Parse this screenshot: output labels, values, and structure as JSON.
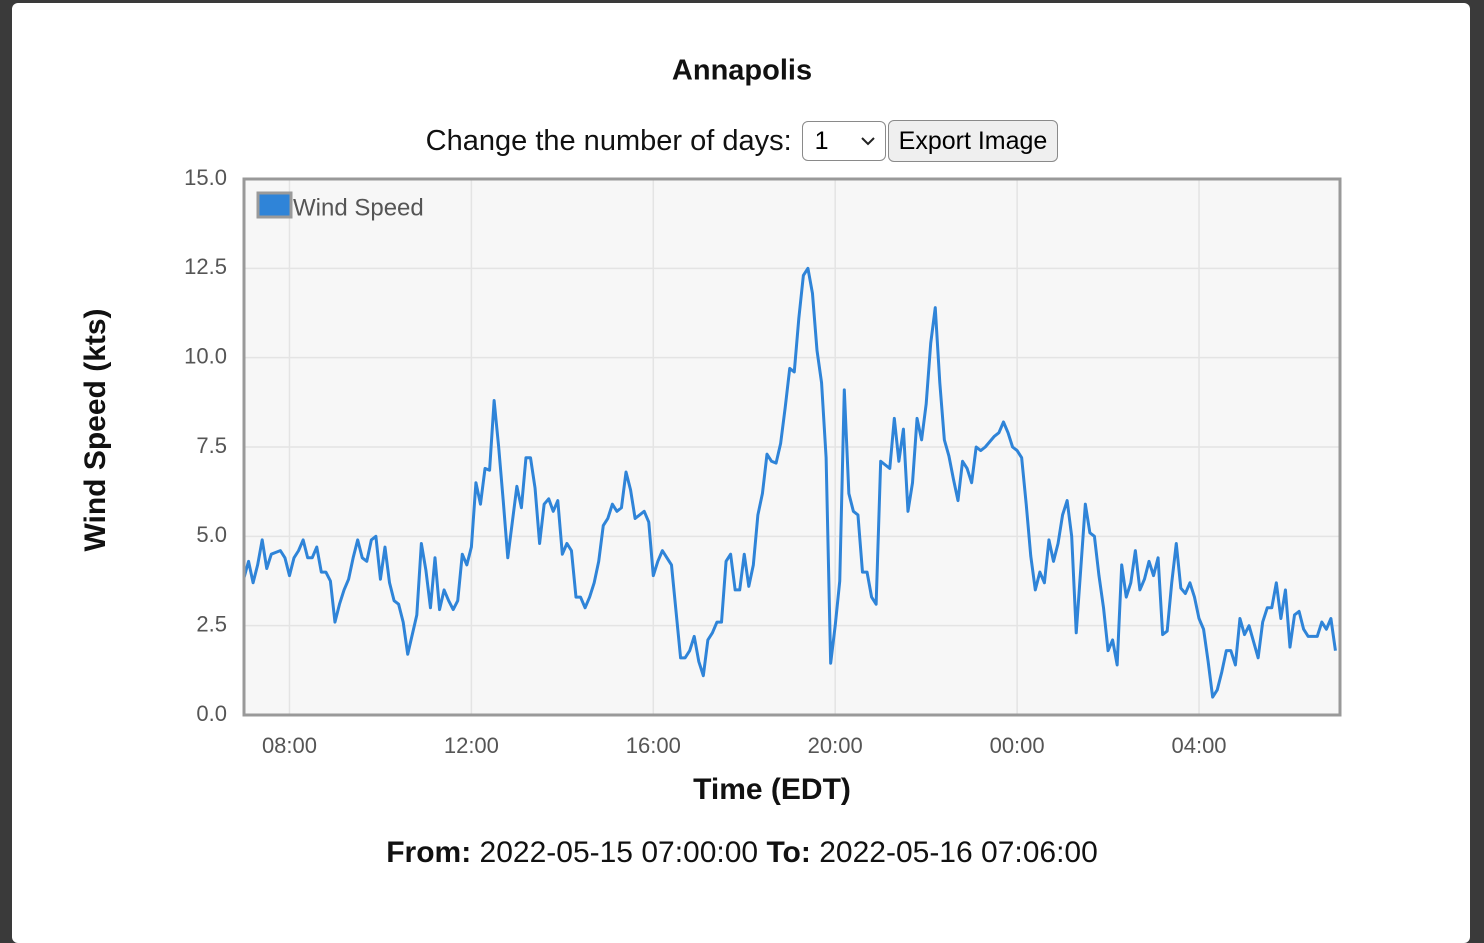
{
  "chart_data": {
    "type": "line",
    "title": "Annapolis",
    "x_label": "Time (EDT)",
    "y_label": "Wind Speed (kts)",
    "xlim": [
      7,
      31.1
    ],
    "ylim": [
      0,
      15
    ],
    "xticks": [
      {
        "value": 8,
        "label": "08:00"
      },
      {
        "value": 12,
        "label": "12:00"
      },
      {
        "value": 16,
        "label": "16:00"
      },
      {
        "value": 20,
        "label": "20:00"
      },
      {
        "value": 24,
        "label": "00:00"
      },
      {
        "value": 28,
        "label": "04:00"
      }
    ],
    "yticks": [
      {
        "value": 0,
        "label": "0.0"
      },
      2.5,
      {
        "value": 5,
        "label": "5.0"
      },
      7.5,
      {
        "value": 10,
        "label": "10.0"
      },
      12.5,
      {
        "value": 15,
        "label": "15.0"
      }
    ],
    "grid": true,
    "legend": "upper-left",
    "x": [
      7,
      7.1,
      7.2,
      7.3,
      7.4,
      7.5,
      7.6,
      7.7,
      7.8,
      7.9,
      8,
      8.1,
      8.2,
      8.3,
      8.4,
      8.5,
      8.6,
      8.7,
      8.8,
      8.9,
      9,
      9.1,
      9.2,
      9.3,
      9.4,
      9.5,
      9.6,
      9.7,
      9.8,
      9.9,
      10,
      10.1,
      10.2,
      10.3,
      10.4,
      10.5,
      10.6,
      10.7,
      10.8,
      10.9,
      11,
      11.1,
      11.2,
      11.3,
      11.4,
      11.5,
      11.6,
      11.7,
      11.8,
      11.9,
      12,
      12.1,
      12.2,
      12.3,
      12.4,
      12.5,
      12.6,
      12.7,
      12.8,
      12.9,
      13,
      13.1,
      13.2,
      13.3,
      13.4,
      13.5,
      13.6,
      13.7,
      13.8,
      13.9,
      14,
      14.1,
      14.2,
      14.3,
      14.4,
      14.5,
      14.6,
      14.7,
      14.8,
      14.9,
      15,
      15.1,
      15.2,
      15.3,
      15.4,
      15.5,
      15.6,
      15.7,
      15.8,
      15.9,
      16,
      16.1,
      16.2,
      16.3,
      16.4,
      16.5,
      16.6,
      16.7,
      16.8,
      16.9,
      17,
      17.1,
      17.2,
      17.3,
      17.4,
      17.5,
      17.6,
      17.7,
      17.8,
      17.9,
      18,
      18.1,
      18.2,
      18.3,
      18.4,
      18.5,
      18.6,
      18.7,
      18.8,
      18.9,
      19,
      19.1,
      19.2,
      19.3,
      19.4,
      19.5,
      19.6,
      19.7,
      19.8,
      19.9,
      20,
      20.1,
      20.2,
      20.3,
      20.4,
      20.5,
      20.6,
      20.7,
      20.8,
      20.9,
      21,
      21.1,
      21.2,
      21.3,
      21.4,
      21.5,
      21.6,
      21.7,
      21.8,
      21.9,
      22,
      22.1,
      22.2,
      22.3,
      22.4,
      22.5,
      22.6,
      22.7,
      22.8,
      22.9,
      23,
      23.1,
      23.2,
      23.3,
      23.4,
      23.5,
      23.6,
      23.7,
      23.8,
      23.9,
      24,
      24.1,
      24.2,
      24.3,
      24.4,
      24.5,
      24.6,
      24.7,
      24.8,
      24.9,
      25,
      25.1,
      25.2,
      25.3,
      25.4,
      25.5,
      25.6,
      25.7,
      25.8,
      25.9,
      26,
      26.1,
      26.2,
      26.3,
      26.4,
      26.5,
      26.6,
      26.7,
      26.8,
      26.9,
      27,
      27.1,
      27.2,
      27.3,
      27.4,
      27.5,
      27.6,
      27.7,
      27.8,
      27.9,
      28,
      28.1,
      28.2,
      28.3,
      28.4,
      28.5,
      28.6,
      28.7,
      28.8,
      28.9,
      29,
      29.1,
      29.2,
      29.3,
      29.4,
      29.5,
      29.6,
      29.7,
      29.8,
      29.9,
      30,
      30.1,
      30.2,
      30.3,
      30.4,
      30.5,
      30.6,
      30.7,
      30.8,
      30.9,
      31
    ],
    "series": [
      {
        "name": "Wind Speed",
        "color": "#2f84d8",
        "values": [
          3.84,
          4.3,
          3.7,
          4.2,
          4.9,
          4.1,
          4.5,
          4.55,
          4.6,
          4.4,
          3.9,
          4.4,
          4.6,
          4.9,
          4.4,
          4.4,
          4.7,
          4.0,
          4.0,
          3.75,
          2.6,
          3.1,
          3.5,
          3.8,
          4.4,
          4.9,
          4.4,
          4.3,
          4.9,
          5.0,
          3.8,
          4.7,
          3.7,
          3.2,
          3.1,
          2.6,
          1.7,
          2.25,
          2.8,
          4.8,
          4.05,
          3.0,
          4.4,
          2.95,
          3.5,
          3.2,
          2.95,
          3.2,
          4.5,
          4.2,
          4.7,
          6.5,
          5.9,
          6.9,
          6.85,
          8.8,
          7.5,
          6.0,
          4.4,
          5.4,
          6.4,
          5.8,
          7.2,
          7.2,
          6.35,
          4.8,
          5.9,
          6.05,
          5.7,
          6.0,
          4.5,
          4.8,
          4.6,
          3.3,
          3.3,
          3.0,
          3.3,
          3.7,
          4.3,
          5.3,
          5.5,
          5.9,
          5.7,
          5.8,
          6.8,
          6.3,
          5.5,
          5.6,
          5.7,
          5.4,
          3.9,
          4.3,
          4.6,
          4.4,
          4.2,
          2.9,
          1.6,
          1.6,
          1.8,
          2.2,
          1.5,
          1.1,
          2.1,
          2.3,
          2.6,
          2.6,
          4.3,
          4.5,
          3.5,
          3.5,
          4.5,
          3.6,
          4.2,
          5.6,
          6.2,
          7.3,
          7.1,
          7.05,
          7.6,
          8.6,
          9.7,
          9.6,
          11.1,
          12.3,
          12.5,
          11.8,
          10.2,
          9.3,
          7.2,
          1.45,
          2.5,
          3.75,
          9.1,
          6.2,
          5.7,
          5.6,
          4.0,
          4.0,
          3.3,
          3.1,
          7.1,
          7.0,
          6.9,
          8.3,
          7.1,
          8.0,
          5.7,
          6.5,
          8.3,
          7.7,
          8.7,
          10.4,
          11.4,
          9.3,
          7.7,
          7.25,
          6.6,
          6.0,
          7.1,
          6.9,
          6.5,
          7.5,
          7.4,
          7.5,
          7.65,
          7.8,
          7.9,
          8.2,
          7.9,
          7.5,
          7.4,
          7.2,
          5.9,
          4.45,
          3.5,
          4.0,
          3.7,
          4.9,
          4.3,
          4.8,
          5.6,
          6.0,
          5.0,
          2.3,
          4.1,
          5.9,
          5.1,
          5.0,
          3.9,
          3.0,
          1.8,
          2.1,
          1.4,
          4.2,
          3.3,
          3.7,
          4.6,
          3.5,
          3.8,
          4.3,
          3.9,
          4.4,
          2.25,
          2.35,
          3.7,
          4.8,
          3.55,
          3.4,
          3.7,
          3.3,
          2.7,
          2.4,
          1.5,
          0.5,
          0.7,
          1.2,
          1.8,
          1.8,
          1.4,
          2.7,
          2.25,
          2.5,
          2.05,
          1.6,
          2.6,
          3.0,
          3.0,
          3.7,
          2.7,
          3.5,
          1.9,
          2.8,
          2.9,
          2.4,
          2.2,
          2.2,
          2.2,
          2.6,
          2.4,
          2.7,
          1.8
        ]
      }
    ]
  },
  "controls": {
    "label": "Change the number of days:",
    "select_value": "1",
    "button": "Export Image"
  },
  "footer": {
    "from_label": "From:",
    "from": "2022-05-15 07:00:00",
    "to_label": "To:",
    "to": "2022-05-16 07:06:00"
  }
}
